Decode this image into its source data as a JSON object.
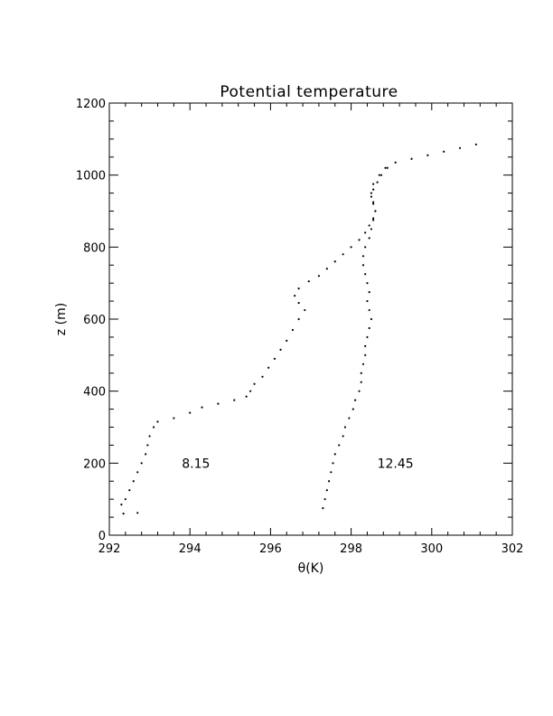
{
  "chart_data": {
    "type": "scatter",
    "title": "Potential temperature",
    "xlabel": "θ(K)",
    "ylabel": "z (m)",
    "xlim": [
      292,
      302
    ],
    "ylim": [
      0,
      1200
    ],
    "xticks": [
      "292",
      "294",
      "296",
      "298",
      "300",
      "302"
    ],
    "yticks": [
      "0",
      "200",
      "400",
      "600",
      "800",
      "1000",
      "1200"
    ],
    "grid": false,
    "series": [
      {
        "name": "8.15",
        "color": "#000000",
        "points": [
          [
            292.35,
            60
          ],
          [
            292.7,
            62
          ],
          [
            292.3,
            85
          ],
          [
            292.4,
            100
          ],
          [
            292.5,
            125
          ],
          [
            292.6,
            150
          ],
          [
            292.7,
            175
          ],
          [
            292.8,
            200
          ],
          [
            292.9,
            225
          ],
          [
            292.95,
            250
          ],
          [
            293.0,
            275
          ],
          [
            293.1,
            300
          ],
          [
            293.2,
            315
          ],
          [
            293.6,
            325
          ],
          [
            294.0,
            340
          ],
          [
            294.3,
            355
          ],
          [
            294.7,
            365
          ],
          [
            295.1,
            375
          ],
          [
            295.4,
            385
          ],
          [
            295.5,
            400
          ],
          [
            295.6,
            420
          ],
          [
            295.8,
            440
          ],
          [
            295.95,
            465
          ],
          [
            296.1,
            490
          ],
          [
            296.25,
            515
          ],
          [
            296.4,
            540
          ],
          [
            296.55,
            570
          ],
          [
            296.7,
            600
          ],
          [
            296.85,
            625
          ],
          [
            296.7,
            645
          ],
          [
            296.6,
            665
          ],
          [
            296.7,
            685
          ],
          [
            296.95,
            705
          ],
          [
            297.2,
            720
          ],
          [
            297.4,
            740
          ],
          [
            297.6,
            760
          ],
          [
            297.8,
            780
          ],
          [
            298.0,
            800
          ],
          [
            298.2,
            820
          ],
          [
            298.35,
            840
          ],
          [
            298.45,
            860
          ],
          [
            298.55,
            880
          ],
          [
            298.6,
            900
          ],
          [
            298.55,
            920
          ],
          [
            298.5,
            940
          ],
          [
            298.55,
            960
          ],
          [
            298.65,
            980
          ],
          [
            298.75,
            1000
          ],
          [
            298.85,
            1020
          ],
          [
            299.1,
            1035
          ],
          [
            299.5,
            1045
          ],
          [
            299.9,
            1055
          ],
          [
            300.3,
            1065
          ],
          [
            300.7,
            1075
          ],
          [
            301.1,
            1085
          ]
        ]
      },
      {
        "name": "12.45",
        "color": "#000000",
        "points": [
          [
            297.3,
            75
          ],
          [
            297.35,
            100
          ],
          [
            297.4,
            125
          ],
          [
            297.45,
            150
          ],
          [
            297.5,
            175
          ],
          [
            297.55,
            200
          ],
          [
            297.6,
            225
          ],
          [
            297.7,
            250
          ],
          [
            297.8,
            275
          ],
          [
            297.85,
            300
          ],
          [
            297.95,
            325
          ],
          [
            298.05,
            350
          ],
          [
            298.1,
            375
          ],
          [
            298.2,
            400
          ],
          [
            298.25,
            425
          ],
          [
            298.25,
            450
          ],
          [
            298.3,
            475
          ],
          [
            298.35,
            500
          ],
          [
            298.35,
            525
          ],
          [
            298.4,
            550
          ],
          [
            298.45,
            575
          ],
          [
            298.5,
            600
          ],
          [
            298.45,
            625
          ],
          [
            298.4,
            650
          ],
          [
            298.45,
            675
          ],
          [
            298.4,
            700
          ],
          [
            298.35,
            725
          ],
          [
            298.3,
            750
          ],
          [
            298.3,
            775
          ],
          [
            298.35,
            800
          ],
          [
            298.45,
            825
          ],
          [
            298.5,
            850
          ],
          [
            298.55,
            875
          ],
          [
            298.6,
            900
          ],
          [
            298.55,
            925
          ],
          [
            298.5,
            950
          ],
          [
            298.55,
            975
          ],
          [
            298.7,
            1000
          ],
          [
            298.9,
            1020
          ]
        ]
      }
    ],
    "annotations": [
      {
        "text": "8.15",
        "x": 293.8,
        "y": 200
      },
      {
        "text": "12.45",
        "x": 298.65,
        "y": 200
      }
    ]
  }
}
